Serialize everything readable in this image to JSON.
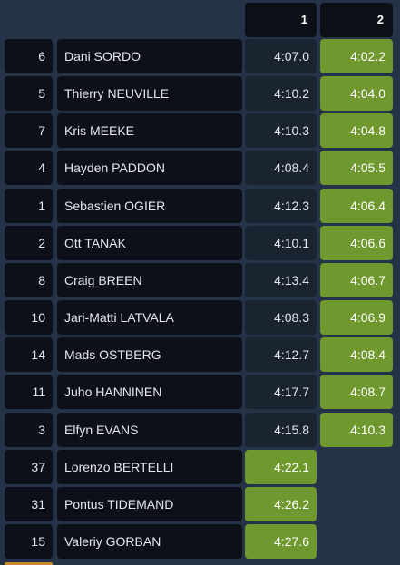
{
  "columns": {
    "stage1": "1",
    "stage2": "2"
  },
  "rows": [
    {
      "num": "6",
      "name": "Dani SORDO",
      "t1": "4:07.0",
      "t2": "4:02.2",
      "best": "t2"
    },
    {
      "num": "5",
      "name": "Thierry NEUVILLE",
      "t1": "4:10.2",
      "t2": "4:04.0",
      "best": "t2"
    },
    {
      "num": "7",
      "name": "Kris MEEKE",
      "t1": "4:10.3",
      "t2": "4:04.8",
      "best": "t2"
    },
    {
      "num": "4",
      "name": "Hayden PADDON",
      "t1": "4:08.4",
      "t2": "4:05.5",
      "best": "t2"
    },
    {
      "num": "1",
      "name": "Sebastien OGIER",
      "t1": "4:12.3",
      "t2": "4:06.4",
      "best": "t2"
    },
    {
      "num": "2",
      "name": "Ott TANAK",
      "t1": "4:10.1",
      "t2": "4:06.6",
      "best": "t2"
    },
    {
      "num": "8",
      "name": "Craig BREEN",
      "t1": "4:13.4",
      "t2": "4:06.7",
      "best": "t2"
    },
    {
      "num": "10",
      "name": "Jari-Matti LATVALA",
      "t1": "4:08.3",
      "t2": "4:06.9",
      "best": "t2"
    },
    {
      "num": "14",
      "name": "Mads OSTBERG",
      "t1": "4:12.7",
      "t2": "4:08.4",
      "best": "t2"
    },
    {
      "num": "11",
      "name": "Juho HANNINEN",
      "t1": "4:17.7",
      "t2": "4:08.7",
      "best": "t2"
    },
    {
      "num": "3",
      "name": "Elfyn EVANS",
      "t1": "4:15.8",
      "t2": "4:10.3",
      "best": "t2"
    },
    {
      "num": "37",
      "name": "Lorenzo BERTELLI",
      "t1": "4:22.1",
      "t2": null,
      "best": "t1"
    },
    {
      "num": "31",
      "name": "Pontus TIDEMAND",
      "t1": "4:26.2",
      "t2": null,
      "best": "t1"
    },
    {
      "num": "15",
      "name": "Valeriy GORBAN",
      "t1": "4:27.6",
      "t2": null,
      "best": "t1"
    }
  ],
  "colors": {
    "background": "#243347",
    "cell": "#0d1018",
    "time_cell": "#1a2330",
    "best_time": "#6f982e",
    "accent_edge": "#c98a2e"
  }
}
